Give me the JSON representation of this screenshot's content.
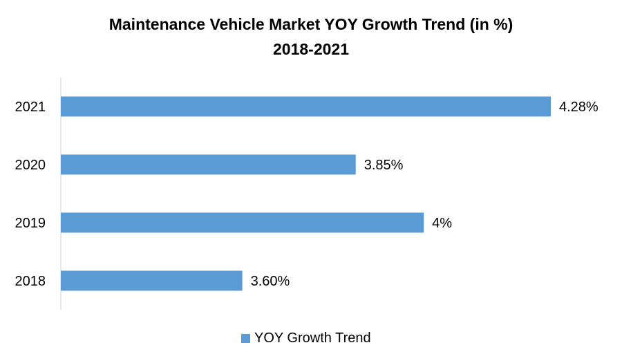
{
  "chart_data": {
    "type": "bar",
    "orientation": "horizontal",
    "title": "Maintenance Vehicle Market YOY Growth Trend (in %)",
    "subtitle": "2018-2021",
    "categories": [
      "2021",
      "2020",
      "2019",
      "2018"
    ],
    "series": [
      {
        "name": "YOY Growth Trend",
        "values": [
          4.28,
          3.85,
          4.0,
          3.6
        ],
        "data_labels": [
          "4.28%",
          "3.85%",
          "4%",
          "3.60%"
        ],
        "color": "#5B9BD5"
      }
    ],
    "xlabel": "",
    "ylabel": "",
    "xlim": [
      3.2,
      4.28
    ],
    "x_axis_visible": false,
    "grid": false,
    "legend": "bottom"
  }
}
